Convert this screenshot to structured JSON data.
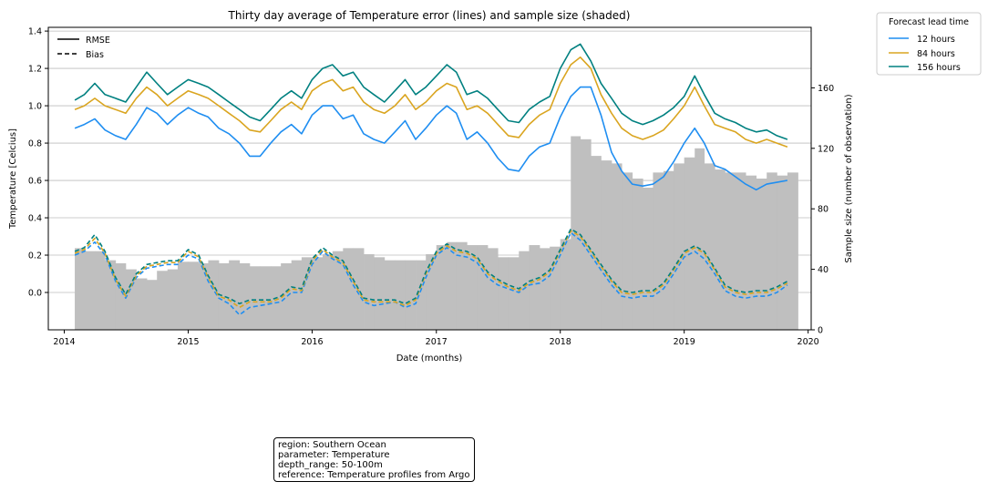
{
  "chart_data": {
    "type": "line",
    "title": "Thirty day average of Temperature error (lines) and sample size (shaded)",
    "xlabel": "Date (months)",
    "ylabel": "Temperature [Celcius]",
    "ylabel_right": "Sample size (number of observation)",
    "xlim": [
      "2013-11-15",
      "2020-01-10"
    ],
    "ylim": [
      -0.2,
      1.42
    ],
    "ylim_right": [
      0,
      200
    ],
    "x_ticks": [
      "2014",
      "2015",
      "2016",
      "2017",
      "2018",
      "2019",
      "2020"
    ],
    "y_ticks": [
      "0.0",
      "0.2",
      "0.4",
      "0.6",
      "0.8",
      "1.0",
      "1.2",
      "1.4"
    ],
    "y_ticks_right": [
      "0",
      "40",
      "80",
      "120",
      "160"
    ],
    "grid": "horizontal",
    "style_legend": {
      "placement": "top-left",
      "entries": [
        {
          "label": "RMSE",
          "style": "solid"
        },
        {
          "label": "Bias",
          "style": "dashed"
        }
      ]
    },
    "lead_legend": {
      "title": "Forecast lead time",
      "placement": "outside-top-right",
      "entries": [
        {
          "label": "12 hours",
          "color": "#1f8ef1"
        },
        {
          "label": "84 hours",
          "color": "#daa520"
        },
        {
          "label": "156 hours",
          "color": "#008080"
        }
      ]
    },
    "x_dates": [
      "2014-02-01",
      "2014-03-01",
      "2014-04-01",
      "2014-05-01",
      "2014-06-01",
      "2014-07-01",
      "2014-08-01",
      "2014-09-01",
      "2014-10-01",
      "2014-11-01",
      "2014-12-01",
      "2015-01-01",
      "2015-02-01",
      "2015-03-01",
      "2015-04-01",
      "2015-05-01",
      "2015-06-01",
      "2015-07-01",
      "2015-08-01",
      "2015-09-01",
      "2015-10-01",
      "2015-11-01",
      "2015-12-01",
      "2016-01-01",
      "2016-02-01",
      "2016-03-01",
      "2016-04-01",
      "2016-05-01",
      "2016-06-01",
      "2016-07-01",
      "2016-08-01",
      "2016-09-01",
      "2016-10-01",
      "2016-11-01",
      "2016-12-01",
      "2017-01-01",
      "2017-02-01",
      "2017-03-01",
      "2017-04-01",
      "2017-05-01",
      "2017-06-01",
      "2017-07-01",
      "2017-08-01",
      "2017-09-01",
      "2017-10-01",
      "2017-11-01",
      "2017-12-01",
      "2018-01-01",
      "2018-02-01",
      "2018-03-01",
      "2018-04-01",
      "2018-05-01",
      "2018-06-01",
      "2018-07-01",
      "2018-08-01",
      "2018-09-01",
      "2018-10-01",
      "2018-11-01",
      "2018-12-01",
      "2019-01-01",
      "2019-02-01",
      "2019-03-01",
      "2019-04-01",
      "2019-05-01",
      "2019-06-01",
      "2019-07-01",
      "2019-08-01",
      "2019-09-01",
      "2019-10-01",
      "2019-11-01"
    ],
    "series": [
      {
        "name": "12 hours",
        "metric": "RMSE",
        "color": "#1f8ef1",
        "dash": "solid",
        "values": [
          0.88,
          0.9,
          0.93,
          0.87,
          0.84,
          0.82,
          0.9,
          0.99,
          0.96,
          0.9,
          0.95,
          0.99,
          0.96,
          0.94,
          0.88,
          0.85,
          0.8,
          0.73,
          0.73,
          0.8,
          0.86,
          0.9,
          0.85,
          0.95,
          1.0,
          1.0,
          0.93,
          0.95,
          0.85,
          0.82,
          0.8,
          0.86,
          0.92,
          0.82,
          0.88,
          0.95,
          1.0,
          0.96,
          0.82,
          0.86,
          0.8,
          0.72,
          0.66,
          0.65,
          0.73,
          0.78,
          0.8,
          0.94,
          1.05,
          1.1,
          1.1,
          0.95,
          0.75,
          0.65,
          0.58,
          0.57,
          0.58,
          0.62,
          0.7,
          0.8,
          0.88,
          0.8,
          0.68,
          0.66,
          0.62,
          0.58,
          0.55,
          0.58,
          0.59,
          0.6
        ]
      },
      {
        "name": "84 hours",
        "metric": "RMSE",
        "color": "#daa520",
        "dash": "solid",
        "values": [
          0.98,
          1.0,
          1.04,
          1.0,
          0.98,
          0.96,
          1.04,
          1.1,
          1.06,
          1.0,
          1.04,
          1.08,
          1.06,
          1.04,
          1.0,
          0.96,
          0.92,
          0.87,
          0.86,
          0.92,
          0.98,
          1.02,
          0.98,
          1.08,
          1.12,
          1.14,
          1.08,
          1.1,
          1.02,
          0.98,
          0.96,
          1.0,
          1.06,
          0.98,
          1.02,
          1.08,
          1.12,
          1.1,
          0.98,
          1.0,
          0.96,
          0.9,
          0.84,
          0.83,
          0.9,
          0.95,
          0.98,
          1.12,
          1.22,
          1.26,
          1.2,
          1.06,
          0.96,
          0.88,
          0.84,
          0.82,
          0.84,
          0.87,
          0.93,
          1.0,
          1.1,
          1.0,
          0.9,
          0.88,
          0.86,
          0.82,
          0.8,
          0.82,
          0.8,
          0.78
        ]
      },
      {
        "name": "156 hours",
        "metric": "RMSE",
        "color": "#008080",
        "dash": "solid",
        "values": [
          1.03,
          1.06,
          1.12,
          1.06,
          1.04,
          1.02,
          1.1,
          1.18,
          1.12,
          1.06,
          1.1,
          1.14,
          1.12,
          1.1,
          1.06,
          1.02,
          0.98,
          0.94,
          0.92,
          0.98,
          1.04,
          1.08,
          1.04,
          1.14,
          1.2,
          1.22,
          1.16,
          1.18,
          1.1,
          1.06,
          1.02,
          1.08,
          1.14,
          1.06,
          1.1,
          1.16,
          1.22,
          1.18,
          1.06,
          1.08,
          1.04,
          0.98,
          0.92,
          0.91,
          0.98,
          1.02,
          1.05,
          1.2,
          1.3,
          1.33,
          1.24,
          1.12,
          1.04,
          0.96,
          0.92,
          0.9,
          0.92,
          0.95,
          0.99,
          1.05,
          1.16,
          1.06,
          0.96,
          0.93,
          0.91,
          0.88,
          0.86,
          0.87,
          0.84,
          0.82
        ]
      },
      {
        "name": "12 hours",
        "metric": "Bias",
        "color": "#1f8ef1",
        "dash": "dashed",
        "values": [
          0.2,
          0.22,
          0.27,
          0.2,
          0.06,
          -0.03,
          0.08,
          0.13,
          0.14,
          0.15,
          0.15,
          0.2,
          0.18,
          0.06,
          -0.03,
          -0.06,
          -0.12,
          -0.08,
          -0.07,
          -0.06,
          -0.05,
          0.0,
          0.0,
          0.15,
          0.22,
          0.18,
          0.15,
          0.04,
          -0.05,
          -0.07,
          -0.06,
          -0.05,
          -0.08,
          -0.06,
          0.08,
          0.2,
          0.24,
          0.2,
          0.19,
          0.16,
          0.08,
          0.04,
          0.02,
          0.0,
          0.04,
          0.05,
          0.09,
          0.2,
          0.32,
          0.28,
          0.2,
          0.12,
          0.04,
          -0.02,
          -0.03,
          -0.02,
          -0.02,
          0.02,
          0.1,
          0.19,
          0.22,
          0.18,
          0.1,
          0.01,
          -0.02,
          -0.03,
          -0.02,
          -0.02,
          0.0,
          0.04
        ]
      },
      {
        "name": "84 hours",
        "metric": "Bias",
        "color": "#daa520",
        "dash": "dashed",
        "values": [
          0.21,
          0.23,
          0.29,
          0.21,
          0.07,
          -0.02,
          0.09,
          0.14,
          0.15,
          0.16,
          0.16,
          0.22,
          0.19,
          0.08,
          -0.02,
          -0.04,
          -0.08,
          -0.05,
          -0.05,
          -0.05,
          -0.03,
          0.02,
          0.01,
          0.17,
          0.23,
          0.19,
          0.16,
          0.06,
          -0.04,
          -0.05,
          -0.05,
          -0.05,
          -0.07,
          -0.04,
          0.1,
          0.21,
          0.25,
          0.22,
          0.21,
          0.18,
          0.1,
          0.06,
          0.03,
          0.01,
          0.05,
          0.07,
          0.11,
          0.22,
          0.33,
          0.3,
          0.22,
          0.14,
          0.06,
          0.0,
          -0.01,
          0.0,
          0.0,
          0.04,
          0.12,
          0.21,
          0.24,
          0.21,
          0.12,
          0.03,
          0.0,
          -0.01,
          0.0,
          0.0,
          0.02,
          0.05
        ]
      },
      {
        "name": "156 hours",
        "metric": "Bias",
        "color": "#008080",
        "dash": "dashed",
        "values": [
          0.22,
          0.24,
          0.31,
          0.22,
          0.08,
          -0.01,
          0.1,
          0.15,
          0.16,
          0.17,
          0.17,
          0.23,
          0.2,
          0.09,
          -0.01,
          -0.03,
          -0.06,
          -0.04,
          -0.04,
          -0.04,
          -0.02,
          0.03,
          0.02,
          0.18,
          0.24,
          0.2,
          0.17,
          0.07,
          -0.03,
          -0.04,
          -0.04,
          -0.04,
          -0.06,
          -0.03,
          0.11,
          0.22,
          0.26,
          0.23,
          0.22,
          0.19,
          0.11,
          0.07,
          0.04,
          0.02,
          0.06,
          0.08,
          0.12,
          0.23,
          0.34,
          0.31,
          0.23,
          0.15,
          0.07,
          0.01,
          0.0,
          0.01,
          0.01,
          0.05,
          0.13,
          0.22,
          0.25,
          0.22,
          0.13,
          0.04,
          0.01,
          0.0,
          0.01,
          0.01,
          0.03,
          0.06
        ]
      }
    ],
    "sample_size": {
      "label": "Sample size",
      "color": "#bfbfbf",
      "values": [
        54,
        52,
        52,
        46,
        44,
        40,
        34,
        33,
        39,
        40,
        45,
        45,
        44,
        46,
        44,
        46,
        44,
        42,
        42,
        42,
        44,
        46,
        48,
        48,
        50,
        52,
        54,
        54,
        50,
        48,
        46,
        46,
        46,
        46,
        50,
        56,
        58,
        58,
        56,
        56,
        54,
        48,
        48,
        52,
        56,
        54,
        55,
        60,
        128,
        126,
        115,
        112,
        110,
        104,
        100,
        94,
        104,
        105,
        110,
        114,
        120,
        110,
        106,
        104,
        104,
        102,
        100,
        104,
        102,
        104
      ]
    }
  },
  "info_box": {
    "lines": [
      "region: Southern Ocean",
      "parameter: Temperature",
      "depth_range: 50-100m",
      "reference: Temperature profiles from Argo"
    ]
  }
}
